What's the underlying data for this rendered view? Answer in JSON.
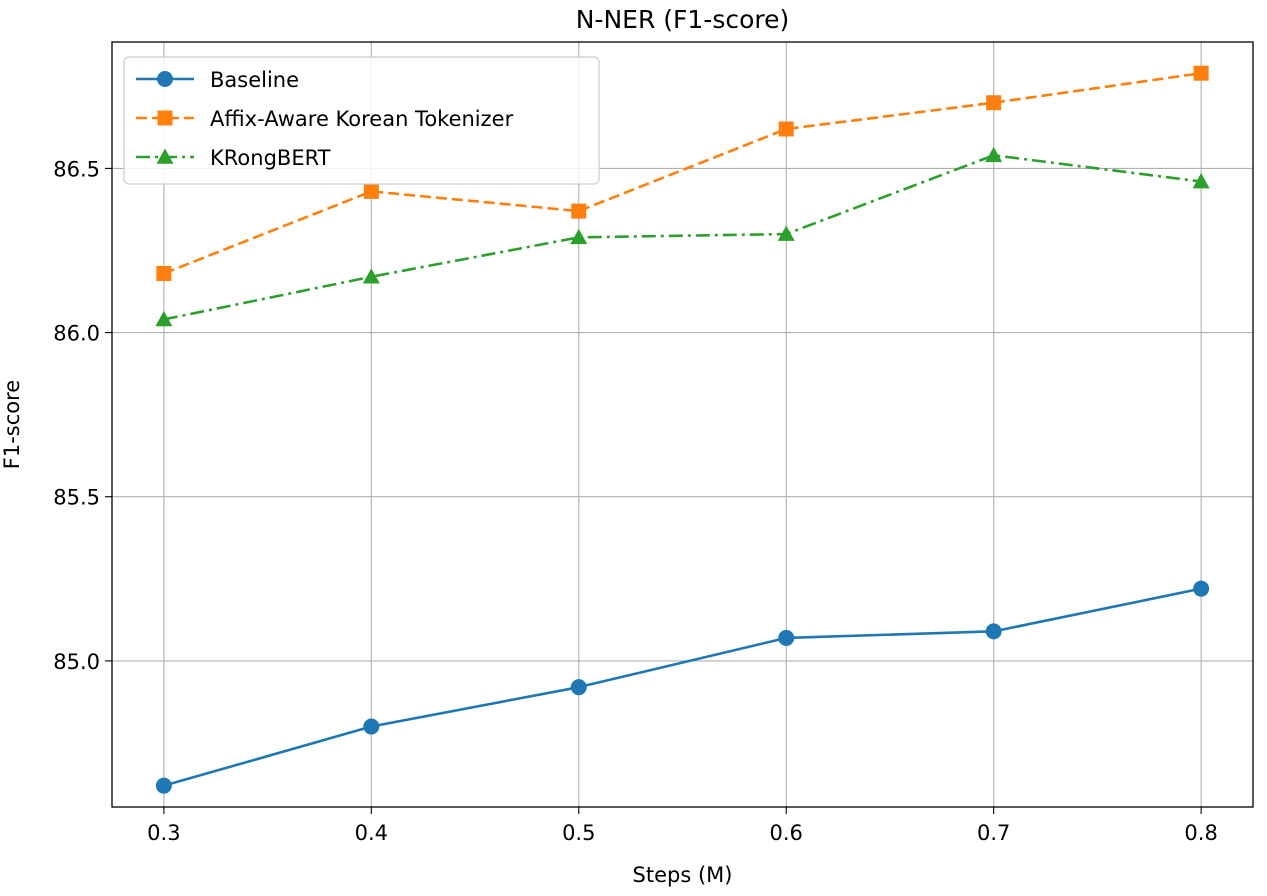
{
  "chart_data": {
    "type": "line",
    "title": "N-NER (F1-score)",
    "xlabel": "Steps (M)",
    "ylabel": "F1-score",
    "x": [
      0.3,
      0.4,
      0.5,
      0.6,
      0.7,
      0.8
    ],
    "x_tick_labels": [
      "0.3",
      "0.4",
      "0.5",
      "0.6",
      "0.7",
      "0.8"
    ],
    "y_ticks": [
      85.0,
      85.5,
      86.0,
      86.5
    ],
    "y_tick_labels": [
      "85.0",
      "85.5",
      "86.0",
      "86.5"
    ],
    "xlim": [
      0.275,
      0.825
    ],
    "ylim": [
      84.555,
      86.885
    ],
    "grid": true,
    "legend_position": "top-left",
    "series": [
      {
        "name": "Baseline",
        "color": "#1f77b4",
        "marker": "circle",
        "line_style": "solid",
        "values": [
          84.62,
          84.8,
          84.92,
          85.07,
          85.09,
          85.22
        ]
      },
      {
        "name": "Affix-Aware Korean Tokenizer",
        "color": "#ff7f0e",
        "marker": "square",
        "line_style": "dashed",
        "values": [
          86.18,
          86.43,
          86.37,
          86.62,
          86.7,
          86.79
        ]
      },
      {
        "name": "KRongBERT",
        "color": "#2ca02c",
        "marker": "triangle",
        "line_style": "dashdot",
        "values": [
          86.04,
          86.17,
          86.29,
          86.3,
          86.54,
          86.46
        ]
      }
    ]
  }
}
